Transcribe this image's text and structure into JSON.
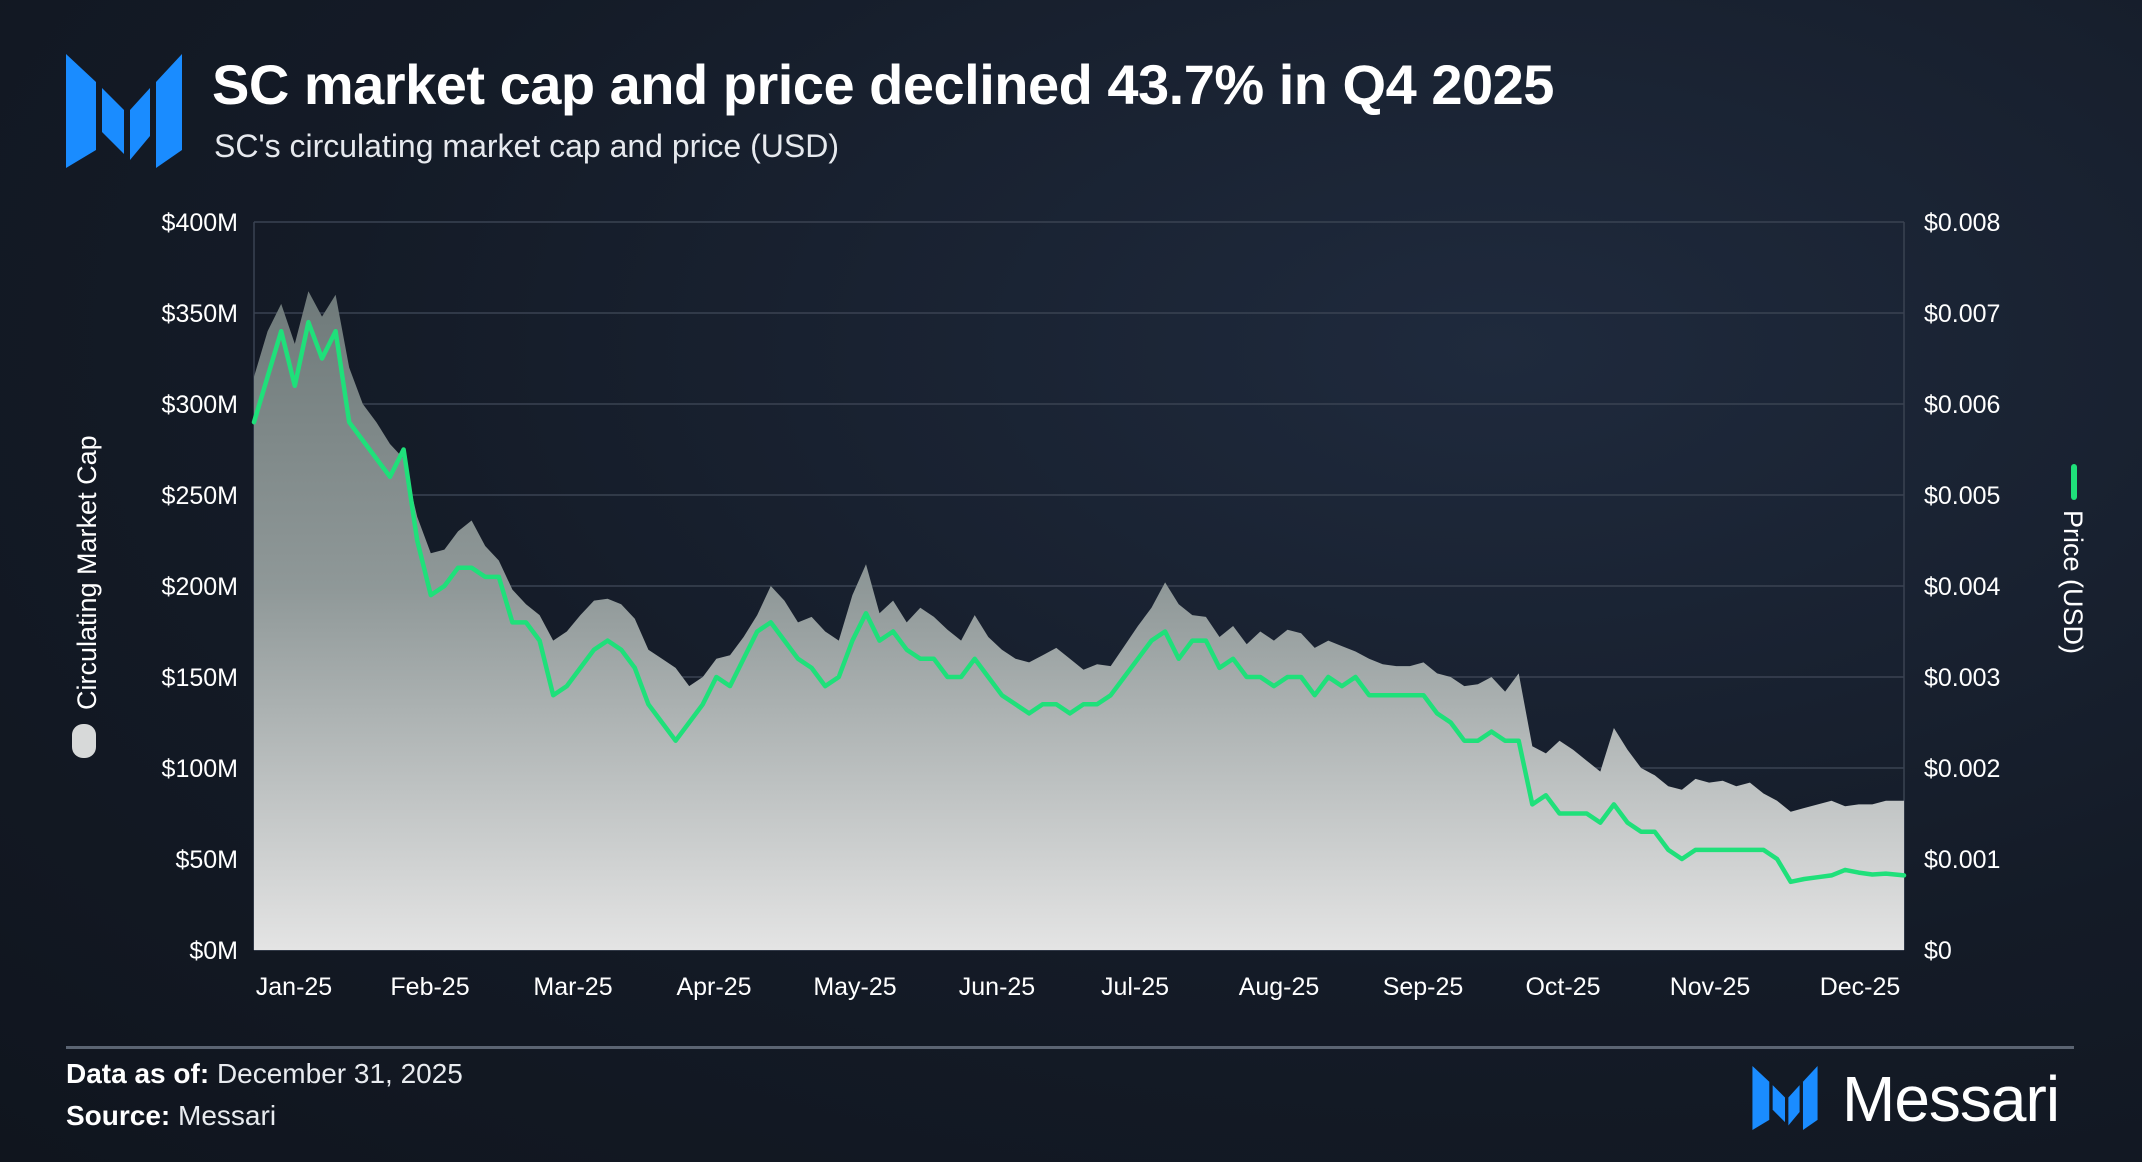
{
  "header": {
    "title": "SC market cap and price declined 43.7% in Q4 2025",
    "subtitle": "SC's circulating market cap and price (USD)"
  },
  "footer": {
    "data_as_of_label": "Data as of:",
    "data_as_of_value": "December 31, 2025",
    "source_label": "Source:",
    "source_value": "Messari",
    "brand": "Messari"
  },
  "colors": {
    "price_line": "#1fe07a",
    "area_top": "#7b8686",
    "area_bottom": "#e4e4e4",
    "accent_blue": "#1a8cff"
  },
  "chart_data": {
    "type": "area",
    "left_axis_title": "Circulating Market Cap",
    "right_axis_title": "Price (USD)",
    "left_ticks": [
      "$0M",
      "$50M",
      "$100M",
      "$150M",
      "$200M",
      "$250M",
      "$300M",
      "$350M",
      "$400M"
    ],
    "right_ticks": [
      "$0",
      "$0.001",
      "$0.002",
      "$0.003",
      "$0.004",
      "$0.005",
      "$0.006",
      "$0.007",
      "$0.008"
    ],
    "left_ylim": [
      0,
      400
    ],
    "right_ylim": [
      0,
      0.008
    ],
    "x_labels": [
      "Jan-25",
      "Feb-25",
      "Mar-25",
      "Apr-25",
      "May-25",
      "Jun-25",
      "Jul-25",
      "Aug-25",
      "Sep-25",
      "Oct-25",
      "Nov-25",
      "Dec-25"
    ],
    "x_range_days": [
      0,
      364
    ],
    "series": [
      {
        "name": "Circulating Market Cap",
        "unit": "USD millions",
        "x": [
          0,
          3,
          6,
          9,
          12,
          15,
          18,
          21,
          24,
          27,
          30,
          33,
          36,
          39,
          42,
          45,
          48,
          51,
          54,
          57,
          60,
          63,
          66,
          69,
          72,
          75,
          78,
          81,
          84,
          87,
          90,
          93,
          96,
          99,
          102,
          105,
          108,
          111,
          114,
          117,
          120,
          123,
          126,
          129,
          132,
          135,
          138,
          141,
          144,
          147,
          150,
          153,
          156,
          159,
          162,
          165,
          168,
          171,
          174,
          177,
          180,
          183,
          186,
          189,
          192,
          195,
          198,
          201,
          204,
          207,
          210,
          213,
          216,
          219,
          222,
          225,
          228,
          231,
          234,
          237,
          240,
          243,
          246,
          249,
          252,
          255,
          258,
          261,
          264,
          267,
          270,
          273,
          276,
          279,
          282,
          285,
          288,
          291,
          294,
          297,
          300,
          303,
          306,
          309,
          312,
          315,
          318,
          321,
          324,
          327,
          330,
          333,
          336,
          339,
          342,
          345,
          348,
          351,
          354,
          357,
          360,
          364
        ],
        "values": [
          315,
          340,
          355,
          333,
          362,
          348,
          360,
          320,
          300,
          290,
          278,
          270,
          238,
          218,
          220,
          230,
          236,
          222,
          214,
          198,
          190,
          184,
          170,
          175,
          184,
          192,
          193,
          190,
          182,
          165,
          160,
          155,
          145,
          150,
          160,
          162,
          172,
          184,
          200,
          192,
          180,
          183,
          175,
          170,
          195,
          212,
          185,
          192,
          180,
          188,
          183,
          176,
          170,
          184,
          172,
          165,
          160,
          158,
          162,
          166,
          160,
          154,
          157,
          156,
          167,
          178,
          188,
          202,
          190,
          184,
          183,
          172,
          178,
          168,
          175,
          170,
          176,
          174,
          166,
          170,
          167,
          164,
          160,
          157,
          156,
          156,
          158,
          152,
          150,
          145,
          146,
          150,
          142,
          152,
          112,
          108,
          115,
          110,
          104,
          98,
          122,
          110,
          100,
          96,
          90,
          88,
          94,
          92,
          93,
          90,
          92,
          86,
          82,
          76,
          78,
          80,
          82,
          79,
          80,
          80,
          82,
          82
        ],
        "color": "#7b8686"
      },
      {
        "name": "Price (USD)",
        "unit": "USD",
        "x": [
          0,
          3,
          6,
          9,
          12,
          15,
          18,
          21,
          24,
          27,
          30,
          33,
          36,
          39,
          42,
          45,
          48,
          51,
          54,
          57,
          60,
          63,
          66,
          69,
          72,
          75,
          78,
          81,
          84,
          87,
          90,
          93,
          96,
          99,
          102,
          105,
          108,
          111,
          114,
          117,
          120,
          123,
          126,
          129,
          132,
          135,
          138,
          141,
          144,
          147,
          150,
          153,
          156,
          159,
          162,
          165,
          168,
          171,
          174,
          177,
          180,
          183,
          186,
          189,
          192,
          195,
          198,
          201,
          204,
          207,
          210,
          213,
          216,
          219,
          222,
          225,
          228,
          231,
          234,
          237,
          240,
          243,
          246,
          249,
          252,
          255,
          258,
          261,
          264,
          267,
          270,
          273,
          276,
          279,
          282,
          285,
          288,
          291,
          294,
          297,
          300,
          303,
          306,
          309,
          312,
          315,
          318,
          321,
          324,
          327,
          330,
          333,
          336,
          339,
          342,
          345,
          348,
          351,
          354,
          357,
          360,
          364
        ],
        "values": [
          0.0058,
          0.0063,
          0.0068,
          0.0062,
          0.0069,
          0.0065,
          0.0068,
          0.0058,
          0.0056,
          0.0054,
          0.0052,
          0.0055,
          0.0045,
          0.0039,
          0.004,
          0.0042,
          0.0042,
          0.0041,
          0.0041,
          0.0036,
          0.0036,
          0.0034,
          0.0028,
          0.0029,
          0.0031,
          0.0033,
          0.0034,
          0.0033,
          0.0031,
          0.0027,
          0.0025,
          0.0023,
          0.0025,
          0.0027,
          0.003,
          0.0029,
          0.0032,
          0.0035,
          0.0036,
          0.0034,
          0.0032,
          0.0031,
          0.0029,
          0.003,
          0.0034,
          0.0037,
          0.0034,
          0.0035,
          0.0033,
          0.0032,
          0.0032,
          0.003,
          0.003,
          0.0032,
          0.003,
          0.0028,
          0.0027,
          0.0026,
          0.0027,
          0.0027,
          0.0026,
          0.0027,
          0.0027,
          0.0028,
          0.003,
          0.0032,
          0.0034,
          0.0035,
          0.0032,
          0.0034,
          0.0034,
          0.0031,
          0.0032,
          0.003,
          0.003,
          0.0029,
          0.003,
          0.003,
          0.0028,
          0.003,
          0.0029,
          0.003,
          0.0028,
          0.0028,
          0.0028,
          0.0028,
          0.0028,
          0.0026,
          0.0025,
          0.0023,
          0.0023,
          0.0024,
          0.0023,
          0.0023,
          0.0016,
          0.0017,
          0.0015,
          0.0015,
          0.0015,
          0.0014,
          0.0016,
          0.0014,
          0.0013,
          0.0013,
          0.0011,
          0.001,
          0.0011,
          0.0011,
          0.0011,
          0.0011,
          0.0011,
          0.0011,
          0.001,
          0.00075,
          0.00078,
          0.0008,
          0.00082,
          0.00088,
          0.00085,
          0.00083,
          0.00084,
          0.00082
        ],
        "color": "#1fe07a"
      }
    ]
  }
}
